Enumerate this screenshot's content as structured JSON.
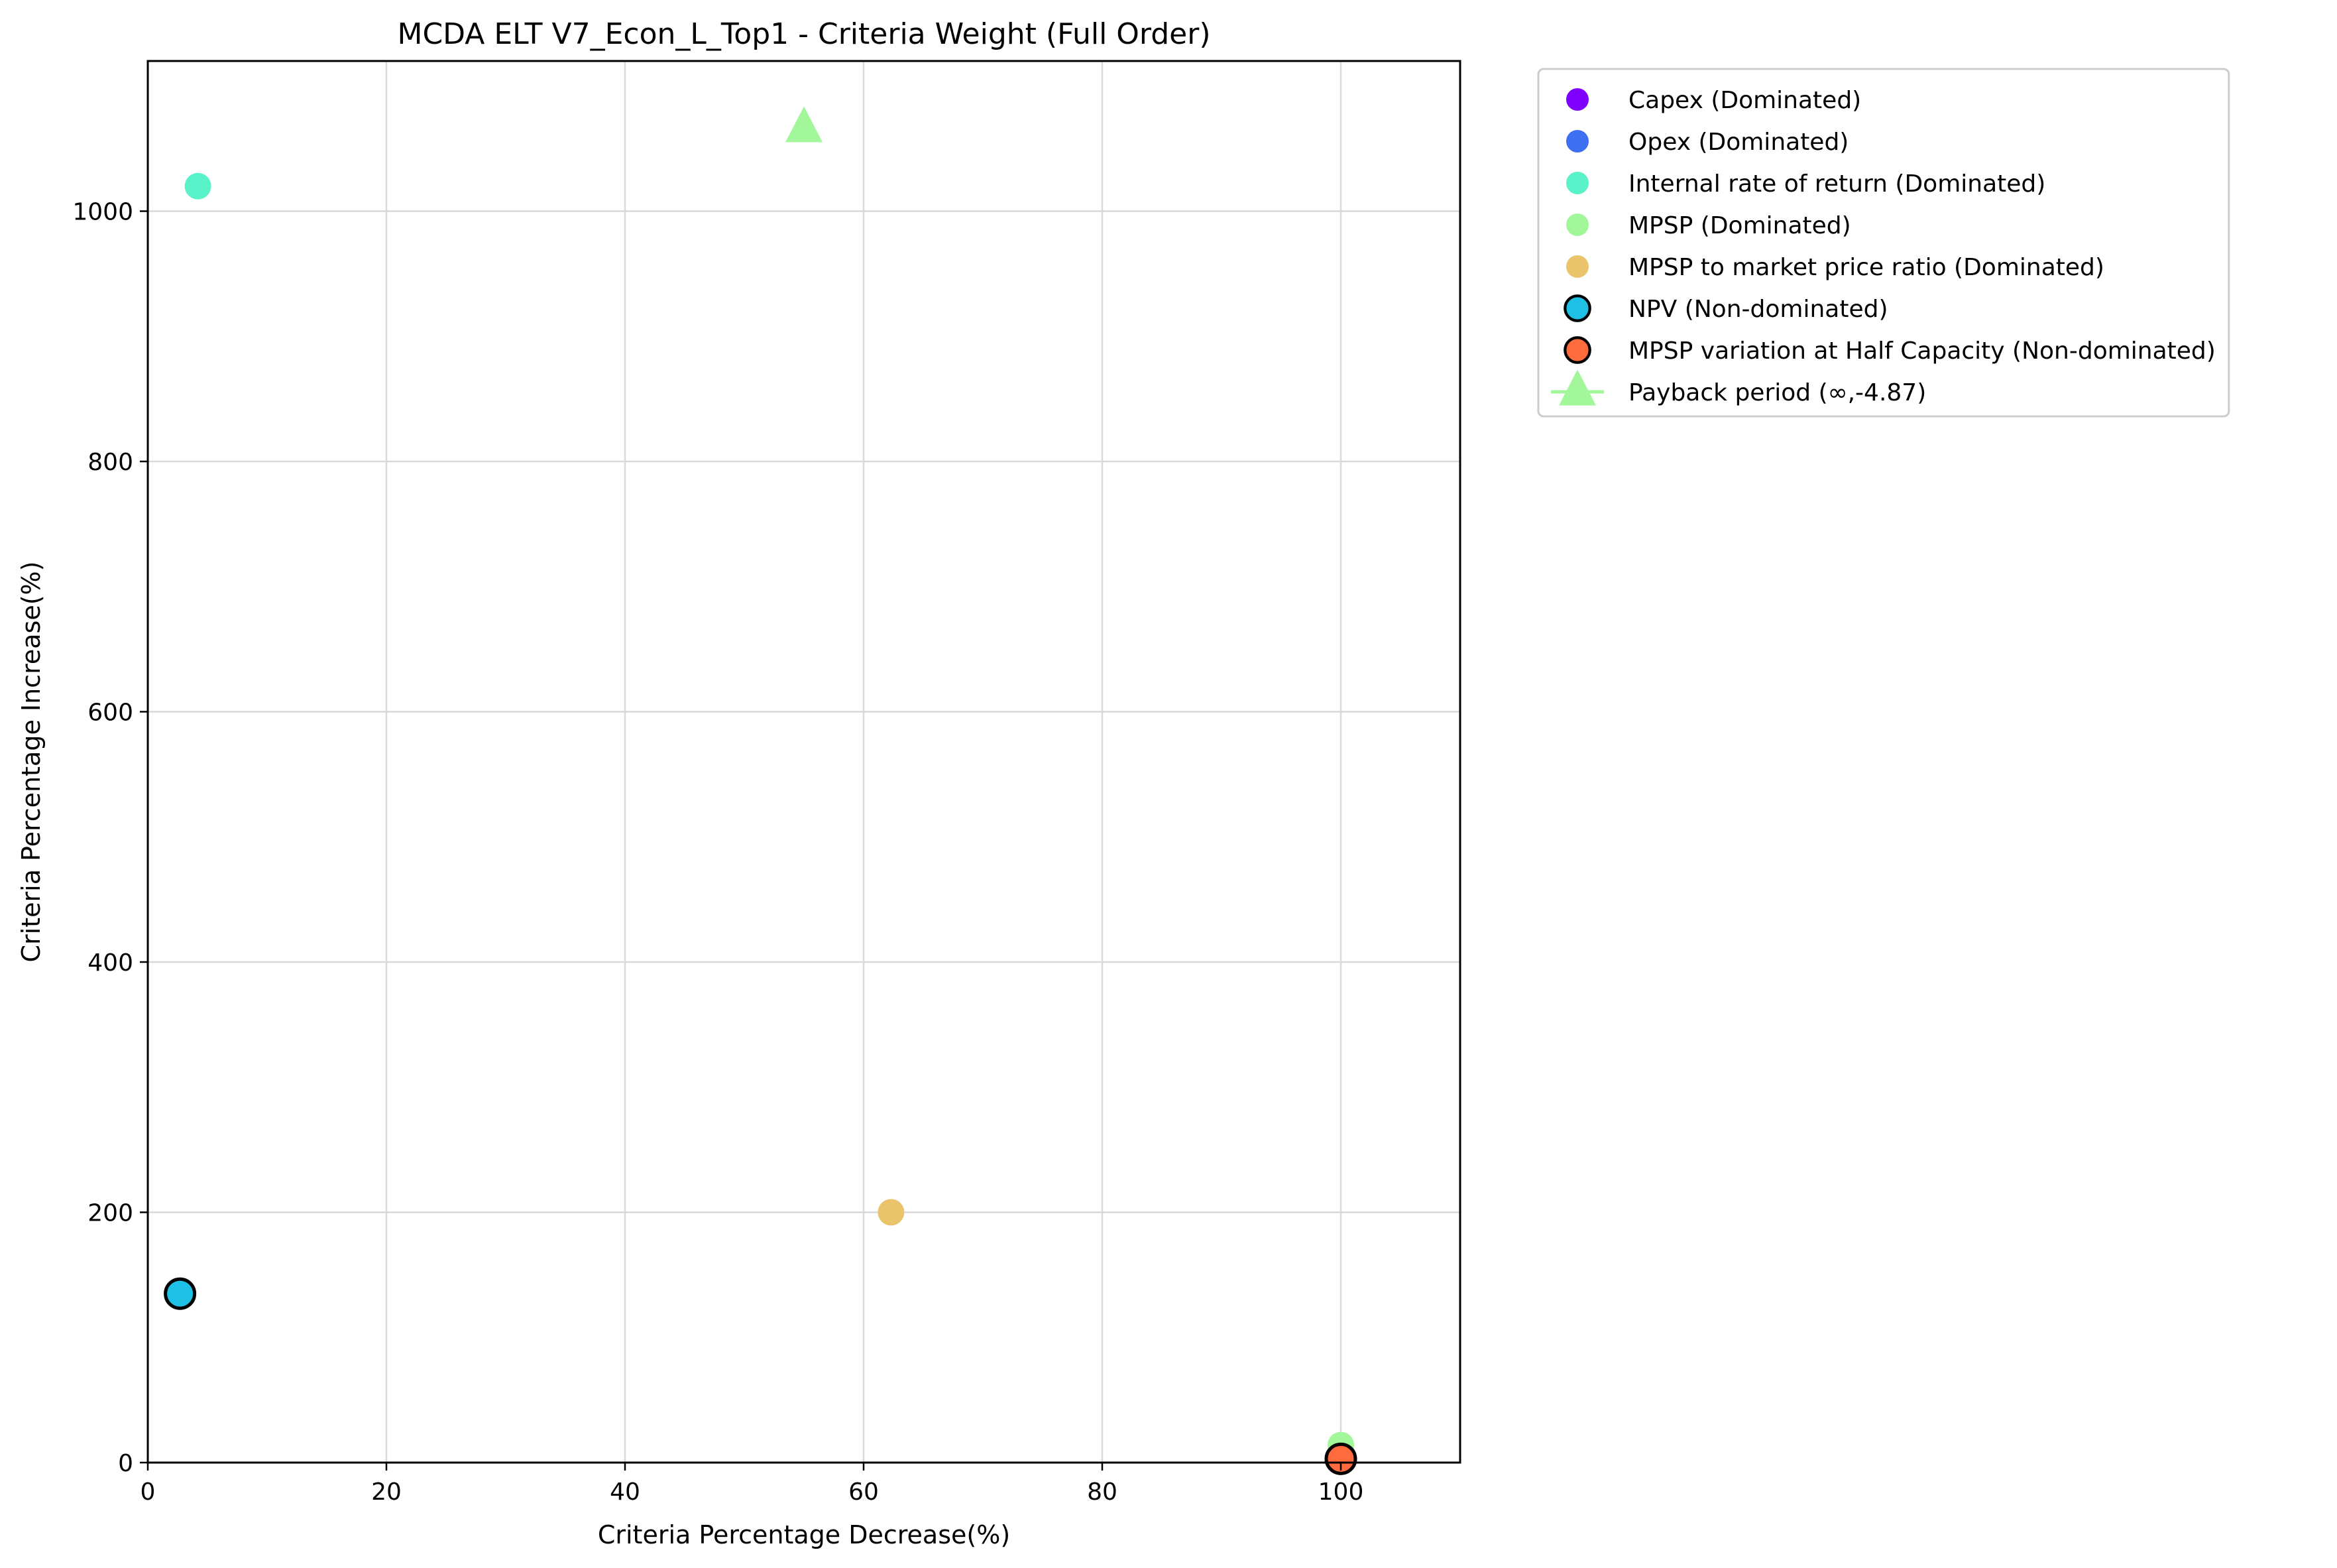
{
  "chart_data": {
    "type": "scatter",
    "title": "MCDA ELT V7_Econ_L_Top1 - Criteria Weight (Full Order)",
    "xlabel": "Criteria Percentage Decrease(%)",
    "ylabel": "Criteria Percentage Increase(%)",
    "xlim": [
      0,
      110
    ],
    "ylim": [
      0,
      1120
    ],
    "xticks": [
      0,
      20,
      40,
      60,
      80,
      100
    ],
    "yticks": [
      0,
      200,
      400,
      600,
      800,
      1000
    ],
    "grid": true,
    "legend_position": "outside-top-right",
    "series": [
      {
        "name": "Capex (Dominated)",
        "color": "#7f00ff",
        "marker": "circle",
        "edge": false,
        "x": [
          100
        ],
        "y": [
          2
        ]
      },
      {
        "name": "Opex (Dominated)",
        "color": "#3c6ff2",
        "marker": "circle",
        "edge": false,
        "x": [
          100
        ],
        "y": [
          3
        ]
      },
      {
        "name": "Internal rate of return (Dominated)",
        "color": "#5af2c8",
        "marker": "circle",
        "edge": false,
        "x": [
          4.2
        ],
        "y": [
          1020
        ]
      },
      {
        "name": "MPSP (Dominated)",
        "color": "#a2f79a",
        "marker": "circle",
        "edge": false,
        "x": [
          100
        ],
        "y": [
          14
        ]
      },
      {
        "name": "MPSP to market price ratio (Dominated)",
        "color": "#e9c46a",
        "marker": "circle",
        "edge": false,
        "x": [
          62.3
        ],
        "y": [
          200
        ]
      },
      {
        "name": "NPV (Non-dominated)",
        "color": "#1fc0e6",
        "marker": "circle",
        "edge": true,
        "x": [
          2.7
        ],
        "y": [
          135
        ]
      },
      {
        "name": "MPSP variation at Half Capacity (Non-dominated)",
        "color": "#ff6b3c",
        "marker": "circle",
        "edge": true,
        "x": [
          100
        ],
        "y": [
          3
        ]
      },
      {
        "name": "Payback period (∞,-4.87)",
        "color": "#a2f79a",
        "marker": "triangle",
        "edge": false,
        "x": [
          55
        ],
        "y": [
          1066
        ]
      }
    ]
  }
}
